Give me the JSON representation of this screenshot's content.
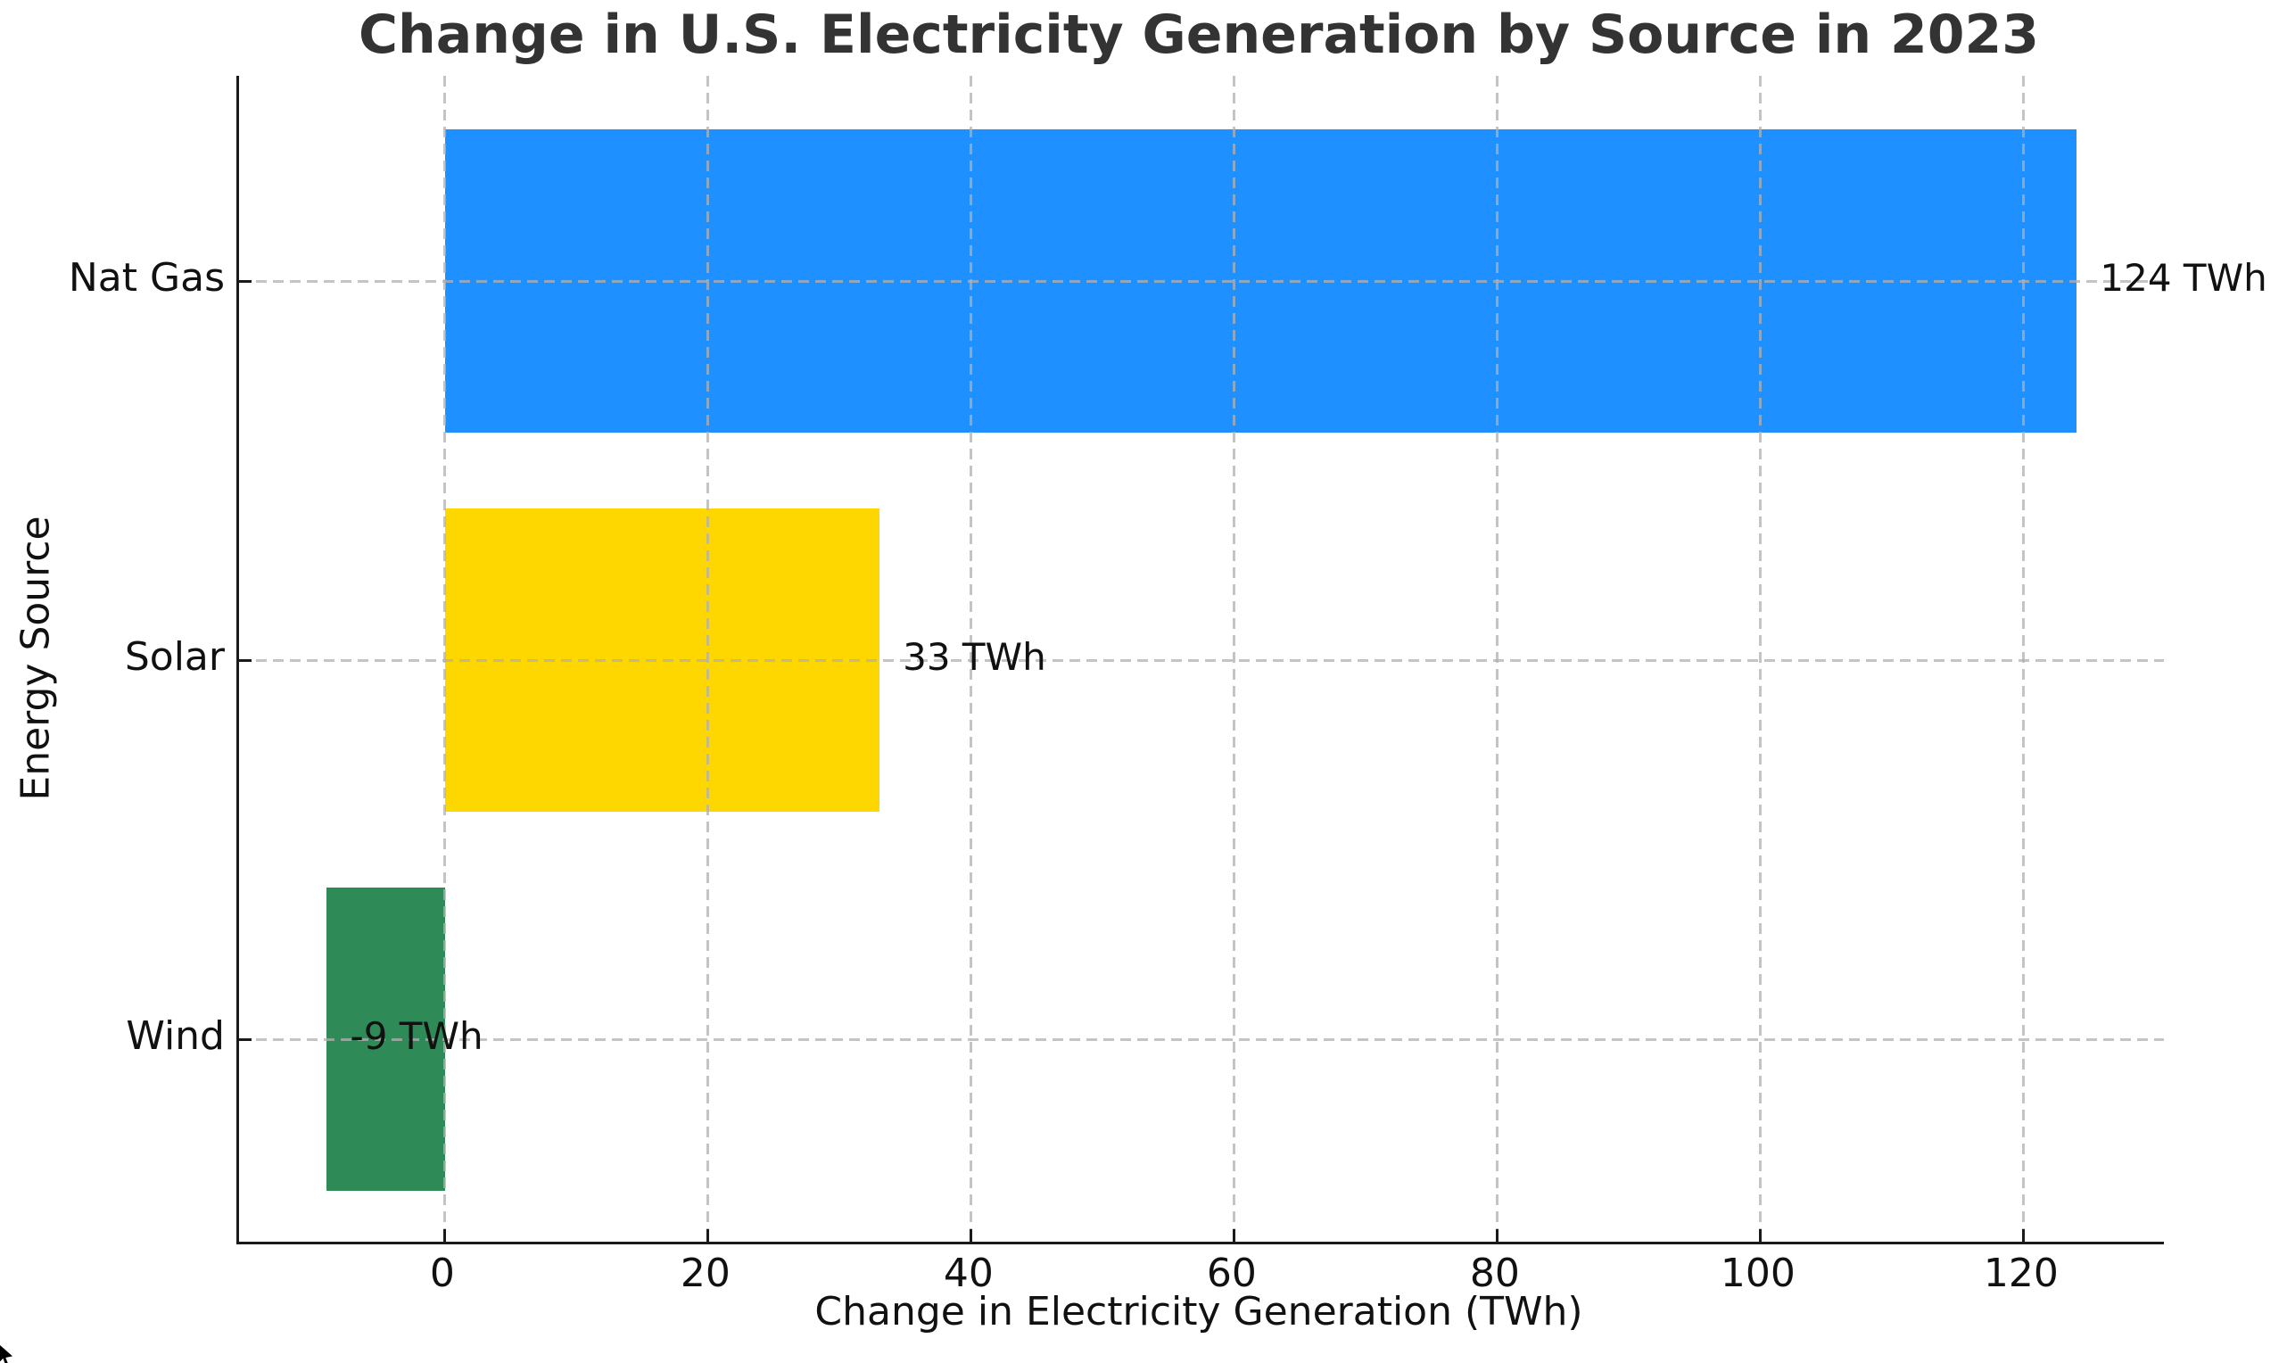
{
  "chart_data": {
    "type": "bar",
    "orientation": "horizontal",
    "title": "Change in U.S. Electricity Generation by Source in 2023",
    "xlabel": "Change in Electricity Generation (TWh)",
    "ylabel": "Energy Source",
    "categories": [
      "Nat Gas",
      "Solar",
      "Wind"
    ],
    "values": [
      124,
      33,
      -9
    ],
    "value_labels": [
      "124 TWh",
      "33 TWh",
      "-9 TWh"
    ],
    "bar_colors": [
      "#1E90FF",
      "#FFD700",
      "#2E8B57"
    ],
    "xticks": [
      0,
      20,
      40,
      60,
      80,
      100,
      120
    ],
    "xlim": [
      -15.65,
      130.65
    ],
    "grid": "dashed gridlines on both axes, drawn over bars",
    "legend": "none",
    "title_color": "#333333",
    "grid_color": "#b0b0b0",
    "axis_color": "#1a1a1a",
    "label_offset_twh": 2
  }
}
